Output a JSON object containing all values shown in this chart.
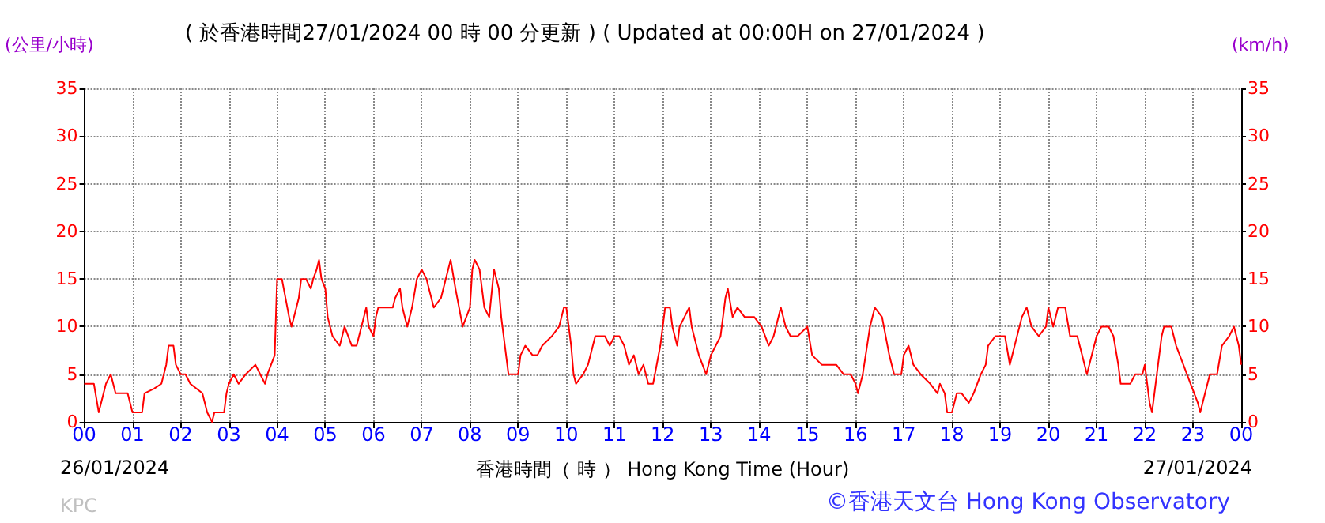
{
  "chart_data": {
    "type": "line",
    "title": "( 於香港時間27/01/2024 00 時 00 分更新 ) ( Updated at 00:00H on 27/01/2024 )",
    "xlabel": "香港時間（ 時 ） Hong Kong Time (Hour)",
    "ylabel": "(公里/小時)",
    "y2label": "(km/h)",
    "annotations": [
      "26/01/2024",
      "27/01/2024",
      "KPC",
      "©香港天文台 Hong Kong Observatory"
    ],
    "x": [
      0,
      0.2,
      0.3,
      0.45,
      0.55,
      0.65,
      0.9,
      1.0,
      1.2,
      1.25,
      1.45,
      1.6,
      1.7,
      1.75,
      1.85,
      1.9,
      2.0,
      2.1,
      2.2,
      2.45,
      2.55,
      2.65,
      2.7,
      2.9,
      2.95,
      3.0,
      3.1,
      3.2,
      3.35,
      3.55,
      3.65,
      3.75,
      3.8,
      3.95,
      4.0,
      4.1,
      4.25,
      4.3,
      4.45,
      4.5,
      4.6,
      4.7,
      4.75,
      4.82,
      4.87,
      4.92,
      5.0,
      5.05,
      5.15,
      5.3,
      5.4,
      5.55,
      5.65,
      5.75,
      5.85,
      5.9,
      6.0,
      6.05,
      6.1,
      6.3,
      6.4,
      6.45,
      6.55,
      6.6,
      6.7,
      6.8,
      6.9,
      7.0,
      7.1,
      7.25,
      7.4,
      7.55,
      7.6,
      7.7,
      7.85,
      8.0,
      8.05,
      8.1,
      8.2,
      8.3,
      8.4,
      8.5,
      8.6,
      8.65,
      8.75,
      8.8,
      9.0,
      9.05,
      9.15,
      9.3,
      9.4,
      9.5,
      9.7,
      9.85,
      9.95,
      10.0,
      10.1,
      10.15,
      10.2,
      10.35,
      10.45,
      10.5,
      10.6,
      10.8,
      10.9,
      11.0,
      11.1,
      11.2,
      11.3,
      11.4,
      11.5,
      11.6,
      11.7,
      11.8,
      11.95,
      12.0,
      12.05,
      12.15,
      12.2,
      12.3,
      12.35,
      12.45,
      12.55,
      12.6,
      12.75,
      12.9,
      13.0,
      13.1,
      13.2,
      13.3,
      13.35,
      13.45,
      13.55,
      13.7,
      13.9,
      14.05,
      14.2,
      14.3,
      14.45,
      14.55,
      14.65,
      14.8,
      15.0,
      15.1,
      15.3,
      15.5,
      15.6,
      15.75,
      15.9,
      16.0,
      16.05,
      16.15,
      16.3,
      16.4,
      16.55,
      16.7,
      16.8,
      16.95,
      17.0,
      17.1,
      17.2,
      17.35,
      17.55,
      17.7,
      17.75,
      17.85,
      17.9,
      18.0,
      18.1,
      18.2,
      18.35,
      18.45,
      18.6,
      18.7,
      18.75,
      18.9,
      19.1,
      19.2,
      19.3,
      19.45,
      19.55,
      19.65,
      19.8,
      19.95,
      20.0,
      20.1,
      20.2,
      20.35,
      20.45,
      20.6,
      20.7,
      20.8,
      20.9,
      21.0,
      21.1,
      21.25,
      21.35,
      21.45,
      21.5,
      21.7,
      21.8,
      21.95,
      22.0,
      22.1,
      22.15,
      22.2,
      22.35,
      22.4,
      22.55,
      22.65,
      22.8,
      22.95,
      23.1,
      23.15,
      23.25,
      23.35,
      23.5,
      23.6,
      23.75,
      23.85,
      23.95,
      24.0
    ],
    "values": [
      4,
      4,
      1,
      4,
      5,
      3,
      3,
      1,
      1,
      3,
      3.5,
      4,
      6,
      8,
      8,
      6,
      5,
      5,
      4,
      3,
      1,
      0,
      1,
      1,
      3,
      4,
      5,
      4,
      5,
      6,
      5,
      4,
      5,
      7,
      15,
      15,
      11,
      10,
      13,
      15,
      15,
      14,
      15,
      16,
      17,
      15,
      14,
      11,
      9,
      8,
      10,
      8,
      8,
      10,
      12,
      10,
      9,
      11,
      12,
      12,
      12,
      13,
      14,
      12,
      10,
      12,
      15,
      16,
      15,
      12,
      13,
      16,
      17,
      14,
      10,
      12,
      16,
      17,
      16,
      12,
      11,
      16,
      14,
      11,
      7,
      5,
      5,
      7,
      8,
      7,
      7,
      8,
      9,
      10,
      12,
      12,
      8,
      5,
      4,
      5,
      6,
      7,
      9,
      9,
      8,
      9,
      9,
      8,
      6,
      7,
      5,
      6,
      4,
      4,
      8,
      10,
      12,
      12,
      10,
      8,
      10,
      11,
      12,
      10,
      7,
      5,
      7,
      8,
      9,
      13,
      14,
      11,
      12,
      11,
      11,
      10,
      8,
      9,
      12,
      10,
      9,
      9,
      10,
      7,
      6,
      6,
      6,
      5,
      5,
      4,
      3,
      5,
      10,
      12,
      11,
      7,
      5,
      5,
      7,
      8,
      6,
      5,
      4,
      3,
      4,
      3,
      1,
      1,
      3,
      3,
      2,
      3,
      5,
      6,
      8,
      9,
      9,
      6,
      8,
      11,
      12,
      10,
      9,
      10,
      12,
      10,
      12,
      12,
      9,
      9,
      7,
      5,
      7,
      9,
      10,
      10,
      9,
      6,
      4,
      4,
      5,
      5,
      6,
      2,
      1,
      3,
      9,
      10,
      10,
      8,
      6,
      4,
      2,
      1,
      3,
      5,
      5,
      8,
      9,
      10,
      8,
      6
    ],
    "color": "#ff0000",
    "xlim": [
      0,
      24
    ],
    "xticks": [
      {
        "value": 0,
        "label": "00"
      },
      {
        "value": 1,
        "label": "01"
      },
      {
        "value": 2,
        "label": "02"
      },
      {
        "value": 3,
        "label": "03"
      },
      {
        "value": 4,
        "label": "04"
      },
      {
        "value": 5,
        "label": "05"
      },
      {
        "value": 6,
        "label": "06"
      },
      {
        "value": 7,
        "label": "07"
      },
      {
        "value": 8,
        "label": "08"
      },
      {
        "value": 9,
        "label": "09"
      },
      10,
      11,
      12,
      13,
      14,
      15,
      16,
      17,
      18,
      19,
      20,
      21,
      22,
      23,
      {
        "value": 24,
        "label": "00"
      }
    ],
    "ylim": [
      0,
      35
    ],
    "yticks": [
      0,
      5,
      10,
      15,
      20,
      25,
      30,
      35
    ],
    "y2lim": [
      0,
      35
    ],
    "y2ticks": [
      0,
      5,
      10,
      15,
      20,
      25,
      30,
      35
    ],
    "grid": true,
    "line_style": "solid",
    "marker": "none"
  }
}
